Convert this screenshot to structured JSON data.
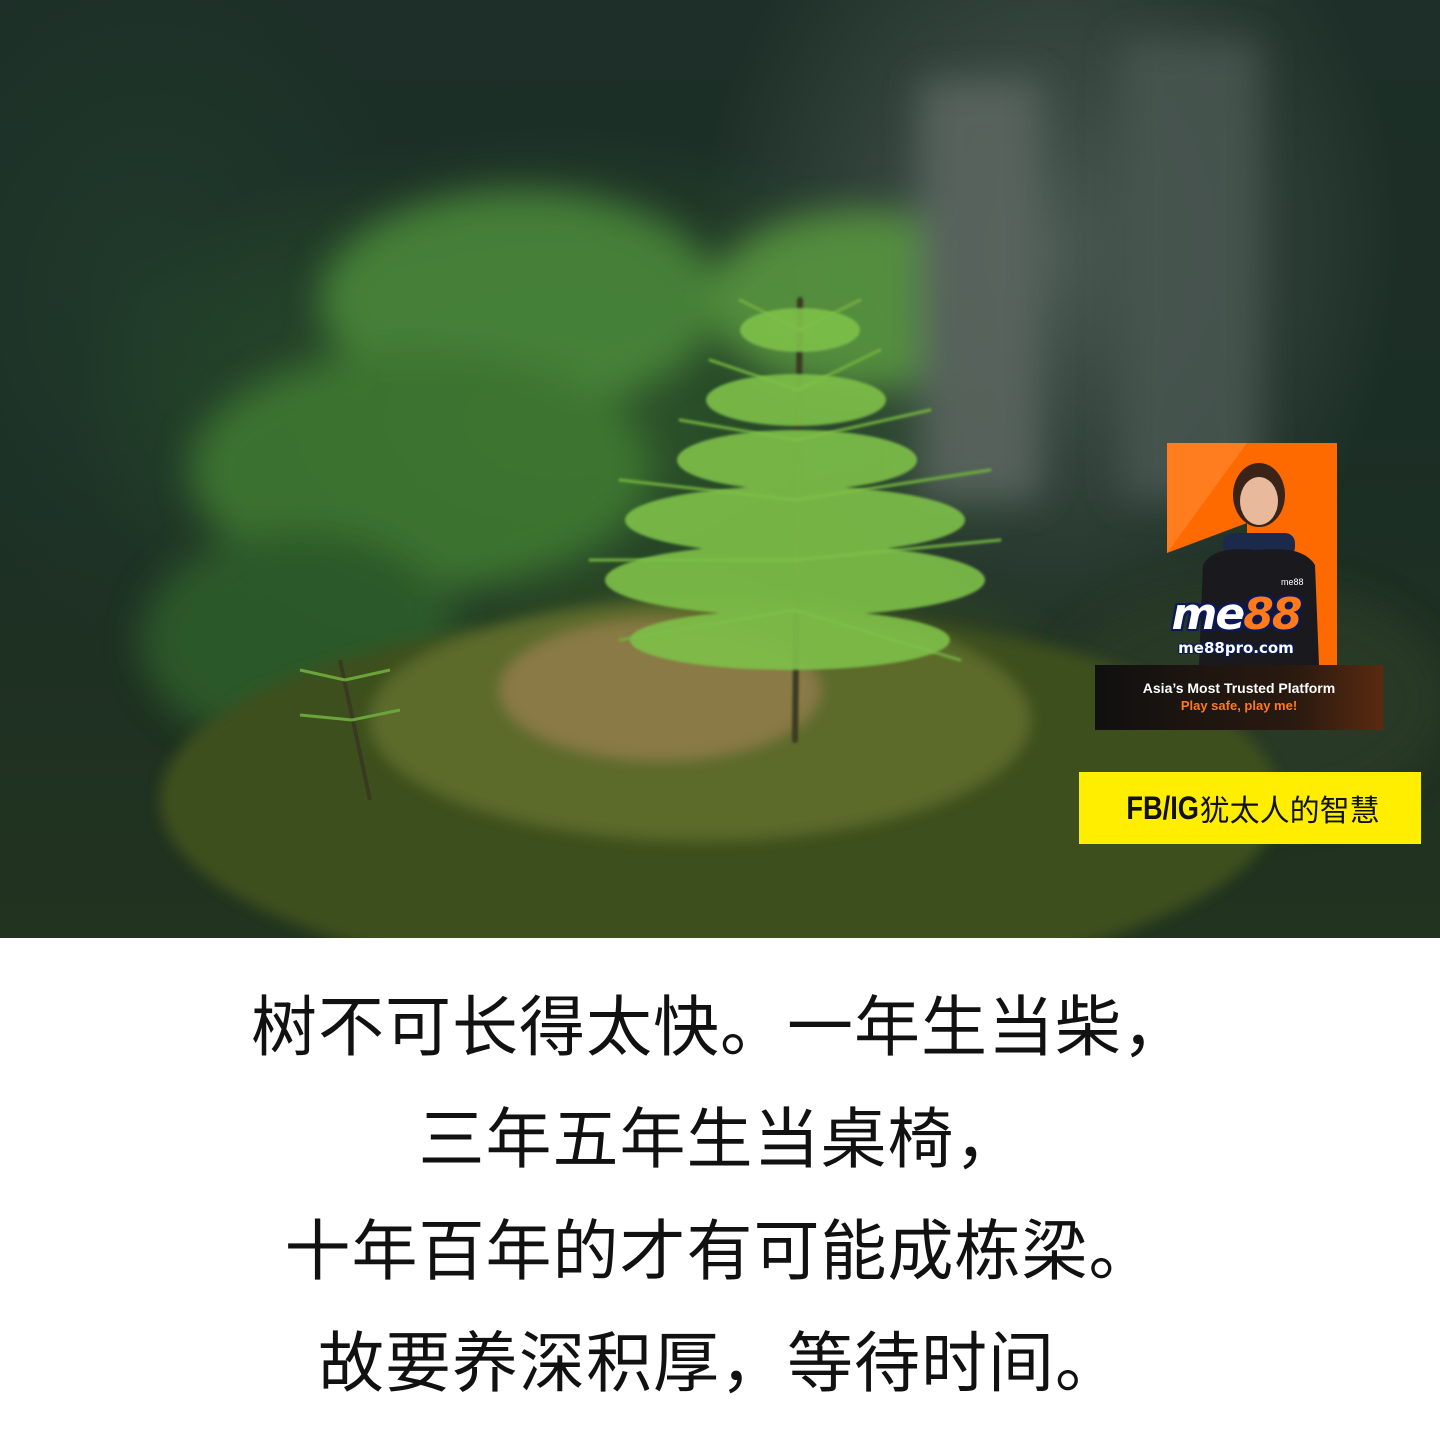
{
  "photo": {
    "subject": "young conifer seedling growing on mossy forest floor"
  },
  "ad": {
    "logo_main": "me",
    "logo_num": "88",
    "url": "me88pro.com",
    "tagline": "Asia’s Most Trusted Platform",
    "slogan": "Play safe, play me!",
    "accent_color": "#ff6a00"
  },
  "social_tag": {
    "prefix": "FB/IG",
    "handle": "犹太人的智慧",
    "background": "#ffee00"
  },
  "quote": {
    "lines": [
      "树不可长得太快。一年生当柴，",
      "三年五年生当桌椅，",
      "十年百年的才有可能成栋梁。",
      "故要养深积厚，等待时间。"
    ]
  }
}
